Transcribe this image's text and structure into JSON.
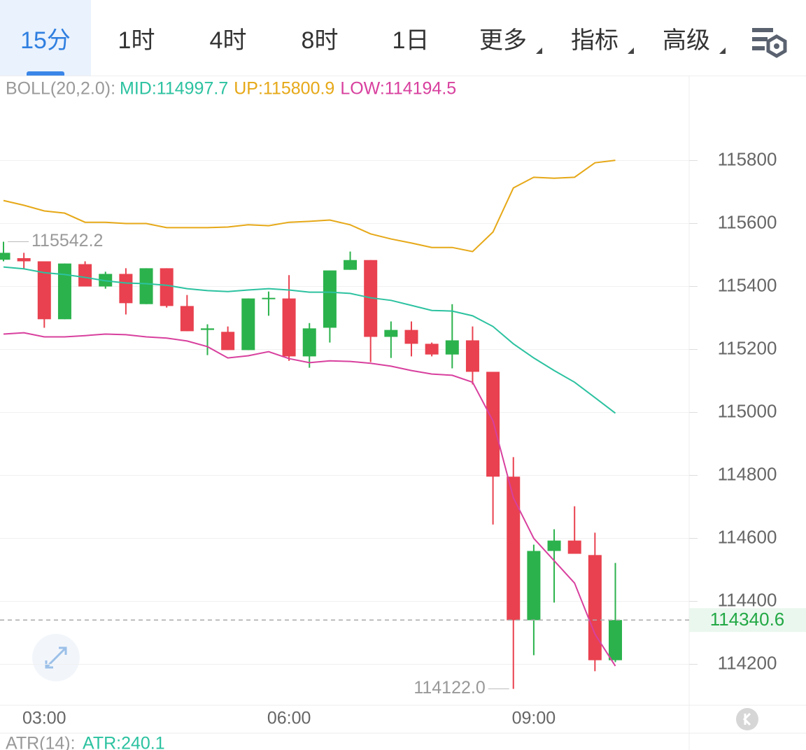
{
  "tabs": [
    "15分",
    "1时",
    "4时",
    "8时",
    "1日",
    "更多",
    "指标",
    "高级"
  ],
  "chart_data": {
    "type": "candlestick",
    "indicator": "BOLL(20,2.0):",
    "categories": [
      null,
      null,
      "03:00",
      null,
      null,
      null,
      null,
      null,
      null,
      null,
      null,
      null,
      null,
      null,
      "06:00",
      null,
      null,
      null,
      null,
      null,
      null,
      null,
      null,
      null,
      null,
      null,
      "09:00",
      null,
      null,
      null,
      null
    ],
    "open": [
      115485,
      115490,
      115480,
      115296,
      115471,
      115400,
      115440,
      115344,
      115458,
      115338,
      115262,
      115256,
      115198,
      115360,
      115362,
      115178,
      115269,
      115453,
      115484,
      115240,
      115262,
      115218,
      115184,
      115229,
      115129,
      114796,
      114340,
      114560,
      114593,
      114547,
      114213
    ],
    "high": [
      115542.2,
      115507,
      115480,
      115473,
      115480,
      115447,
      115458,
      115458,
      115458,
      115373,
      115280,
      115273,
      115362,
      115384,
      115436,
      115284,
      115451,
      115511,
      115484,
      115289,
      115289,
      115222,
      115344,
      115273,
      115129,
      114858,
      114580,
      114629,
      114702,
      114618,
      114522
    ],
    "low": [
      115480,
      115456,
      115269,
      115296,
      115400,
      115393,
      115311,
      115344,
      115333,
      115258,
      115182,
      115198,
      115198,
      115307,
      115164,
      115142,
      115222,
      115453,
      115160,
      115173,
      115178,
      115178,
      115140,
      115089,
      114644,
      114122.0,
      114229,
      114396,
      114551,
      114178,
      114207
    ],
    "close": [
      115507,
      115480,
      115296,
      115473,
      115400,
      115440,
      115347,
      115458,
      115338,
      115258,
      115267,
      115198,
      115362,
      115364,
      115178,
      115267,
      115451,
      115484,
      115240,
      115262,
      115218,
      115184,
      115229,
      115129,
      114796,
      114340,
      114560,
      114593,
      114551,
      114213,
      114340.6
    ],
    "up_color": "#2bb24c",
    "down_color": "#e9414f",
    "series": [
      {
        "name": "MID:114997.7",
        "color": "#2cc2a0",
        "values": [
          115462,
          115456,
          115444,
          115438,
          115429,
          115418,
          115411,
          115409,
          115404,
          115393,
          115387,
          115384,
          115389,
          115393,
          115389,
          115382,
          115382,
          115378,
          115364,
          115356,
          115340,
          115324,
          115322,
          115307,
          115273,
          115218,
          115173,
          115133,
          115096,
          115047,
          114997.7
        ]
      },
      {
        "name": "UP:115800.9",
        "color": "#e6a817",
        "values": [
          115673,
          115658,
          115640,
          115633,
          115604,
          115604,
          115600,
          115600,
          115587,
          115587,
          115587,
          115589,
          115596,
          115593,
          115604,
          115607,
          115611,
          115596,
          115567,
          115551,
          115538,
          115524,
          115524,
          115511,
          115573,
          115713,
          115747,
          115744,
          115747,
          115793,
          115800.9
        ]
      },
      {
        "name": "LOW:114194.5",
        "color": "#d8409e",
        "values": [
          115249,
          115253,
          115240,
          115240,
          115244,
          115249,
          115247,
          115240,
          115236,
          115227,
          115209,
          115173,
          115180,
          115193,
          115171,
          115158,
          115164,
          115162,
          115156,
          115147,
          115133,
          115122,
          115118,
          115096,
          114973,
          114729,
          114600,
          114529,
          114458,
          114296,
          114194.5
        ]
      }
    ],
    "ylim": [
      114070,
      116070
    ],
    "yticks": [
      114200,
      114400,
      114600,
      114800,
      115000,
      115200,
      115400,
      115600,
      115800
    ],
    "grid": true,
    "annotations": [
      {
        "kind": "high",
        "value": 115542.2,
        "label": "115542.2"
      },
      {
        "kind": "low",
        "value": 114122.0,
        "label": "114122.0"
      },
      {
        "kind": "last",
        "value": 114340.6,
        "label": "114340.6"
      }
    ]
  },
  "footer": {
    "label": "ATR(14):",
    "value": "ATR:240.1"
  }
}
